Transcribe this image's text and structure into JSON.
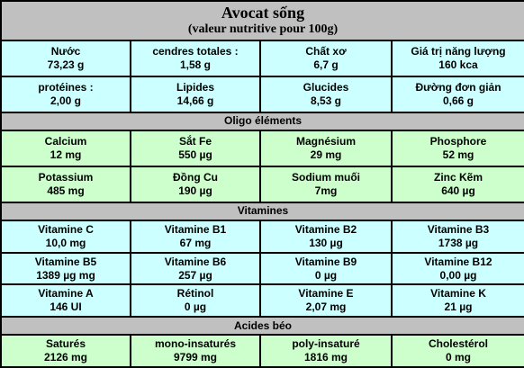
{
  "title": "Avocat sống",
  "subtitle": "(valeur nutritive pour 100g)",
  "colors": {
    "header_bg": "#c0c0c0",
    "blue_row": "#ccffff",
    "green_row": "#ccffcc",
    "border": "#000000"
  },
  "sections": [
    {
      "heading": "",
      "theme": "blue",
      "rows": [
        [
          {
            "name": "Nước",
            "value": "73,23 g"
          },
          {
            "name": "cendres totales :",
            "value": "1,58 g"
          },
          {
            "name": "Chất xơ",
            "value": "6,7 g"
          },
          {
            "name": "Giá trị năng lượng",
            "value": "160 kca"
          }
        ],
        [
          {
            "name": "protéines :",
            "value": "2,00 g"
          },
          {
            "name": "Lipides",
            "value": "14,66 g"
          },
          {
            "name": "Glucides",
            "value": "8,53 g"
          },
          {
            "name": "Đường đơn giản",
            "value": "0,66 g"
          }
        ]
      ]
    },
    {
      "heading": "Oligo éléments",
      "theme": "green",
      "rows": [
        [
          {
            "name": "Calcium",
            "value": "12 mg"
          },
          {
            "name": "Sắt Fe",
            "value": "550 µg"
          },
          {
            "name": "Magnésium",
            "value": "29 mg"
          },
          {
            "name": "Phosphore",
            "value": "52 mg"
          }
        ],
        [
          {
            "name": "Potassium",
            "value": "485 mg"
          },
          {
            "name": "Đồng Cu",
            "value": "190 µg"
          },
          {
            "name": "Sodium muối",
            "value": "7mg"
          },
          {
            "name": "Zinc Kẽm",
            "value": "640 µg"
          }
        ]
      ]
    },
    {
      "heading": "Vitamines",
      "theme": "blue",
      "rows": [
        [
          {
            "name": "Vitamine C",
            "value": "10,0 mg"
          },
          {
            "name": "Vitamine B1",
            "value": "67 mg"
          },
          {
            "name": "Vitamine B2",
            "value": "130 µg"
          },
          {
            "name": "Vitamine B3",
            "value": "1738 µg"
          }
        ],
        [
          {
            "name": "Vitamine B5",
            "value": "1389 µg mg"
          },
          {
            "name": "Vitamine B6",
            "value": "257 µg"
          },
          {
            "name": "Vitamine B9",
            "value": "0 µg"
          },
          {
            "name": "Vitamine B12",
            "value": "0,00 µg"
          }
        ],
        [
          {
            "name": "Vitamine A",
            "value": "146 UI"
          },
          {
            "name": "Rétinol",
            "value": "0 µg"
          },
          {
            "name": "Vitamine E",
            "value": "2,07 mg"
          },
          {
            "name": "Vitamine K",
            "value": "21 µg"
          }
        ]
      ]
    },
    {
      "heading": "Acides béo",
      "theme": "green",
      "rows": [
        [
          {
            "name": "Saturés",
            "value": "2126 mg"
          },
          {
            "name": "mono-insaturés",
            "value": "9799 mg"
          },
          {
            "name": "poly-insaturé",
            "value": "1816 mg"
          },
          {
            "name": "Cholestérol",
            "value": "0 mg"
          }
        ]
      ]
    }
  ]
}
